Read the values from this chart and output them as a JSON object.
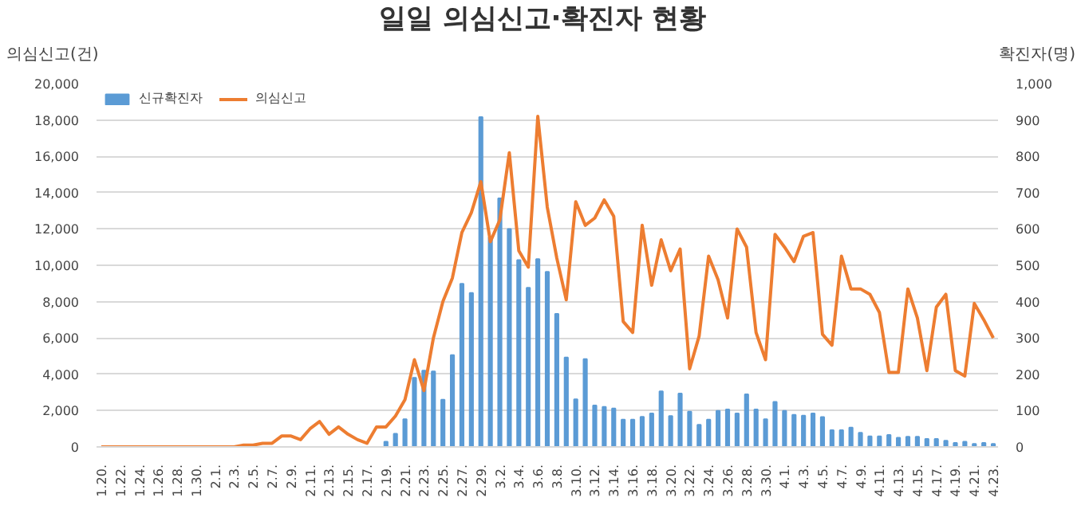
{
  "chart_data": {
    "type": "bar",
    "title": "일일 의심신고·확진자 현황",
    "ylabel": "의심신고(건)",
    "y2label": "확진자(명)",
    "categories": [
      "1.20.",
      null,
      "1.22.",
      null,
      "1.24.",
      null,
      "1.26.",
      null,
      "1.28.",
      null,
      "1.30.",
      null,
      "2.1.",
      null,
      "2.3.",
      null,
      "2.5.",
      null,
      "2.7.",
      null,
      "2.9.",
      null,
      "2.11.",
      null,
      "2.13.",
      null,
      "2.15.",
      null,
      "2.17.",
      null,
      "2.19.",
      null,
      "2.21.",
      null,
      "2.23.",
      null,
      "2.25.",
      null,
      "2.27.",
      null,
      "2.29.",
      null,
      "3.2.",
      null,
      "3.4.",
      null,
      "3.6.",
      null,
      "3.8.",
      null,
      "3.10.",
      null,
      "3.12.",
      null,
      "3.14.",
      null,
      "3.16.",
      null,
      "3.18.",
      null,
      "3.20.",
      null,
      "3.22.",
      null,
      "3.24.",
      null,
      "3.26.",
      null,
      "3.28.",
      null,
      "3.30.",
      null,
      "4.1.",
      null,
      "4.3.",
      null,
      "4.5.",
      null,
      "4.7.",
      null,
      "4.9.",
      null,
      "4.11.",
      null,
      "4.13.",
      null,
      "4.15.",
      null,
      "4.17.",
      null,
      "4.19.",
      null,
      "4.21.",
      null,
      "4.23."
    ],
    "series": [
      {
        "name": "신규확진자",
        "axis": "y2",
        "color": "#5b9bd5",
        "values": [
          0,
          0,
          0,
          0,
          0,
          0,
          0,
          0,
          0,
          0,
          0,
          0,
          0,
          0,
          0,
          0,
          0,
          0,
          0,
          0,
          0,
          0,
          0,
          0,
          0,
          0,
          0,
          0,
          0,
          0,
          14,
          36,
          76,
          190,
          210,
          208,
          130,
          253,
          449,
          424,
          908,
          577,
          684,
          600,
          514,
          438,
          517,
          482,
          366,
          246,
          131,
          242,
          114,
          110,
          106,
          75,
          75,
          83,
          92,
          153,
          85,
          147,
          97,
          61,
          75,
          99,
          103,
          92,
          145,
          103,
          76,
          124,
          99,
          88,
          86,
          92,
          82,
          46,
          46,
          53,
          39,
          29,
          29,
          33,
          25,
          28,
          28,
          22,
          22,
          17,
          11,
          14,
          8,
          11,
          8
        ]
      },
      {
        "name": "의심신고",
        "type": "line",
        "color": "#ed7d31",
        "values": [
          0,
          0,
          0,
          0,
          0,
          0,
          0,
          0,
          0,
          0,
          0,
          0,
          0,
          0,
          0,
          100,
          100,
          200,
          200,
          600,
          600,
          400,
          1000,
          1400,
          700,
          1100,
          700,
          400,
          200,
          1100,
          1100,
          1700,
          2600,
          4800,
          3100,
          6000,
          8000,
          9300,
          11800,
          12900,
          14600,
          11300,
          12500,
          16200,
          10800,
          9900,
          18200,
          13200,
          10400,
          8100,
          13500,
          12200,
          12600,
          13600,
          12700,
          6900,
          6300,
          12200,
          8900,
          11400,
          9700,
          10900,
          4300,
          6100,
          10500,
          9200,
          7100,
          12000,
          11000,
          6300,
          4800,
          11700,
          11000,
          10200,
          11600,
          11800,
          6200,
          5600,
          10500,
          8700,
          8700,
          8400,
          7400,
          4100,
          4100,
          8700,
          7100,
          4200,
          7700,
          8400,
          4200,
          3900,
          7900,
          7000,
          6000
        ]
      }
    ],
    "ylim": [
      0,
      20000
    ],
    "yticks": [
      0,
      {
        "value": 2000,
        "label": "2,000"
      },
      {
        "value": 4000,
        "label": "4,000"
      },
      {
        "value": 6000,
        "label": "6,000"
      },
      {
        "value": 8000,
        "label": "8,000"
      },
      {
        "value": 10000,
        "label": "10,000"
      },
      {
        "value": 12000,
        "label": "12,000"
      },
      {
        "value": 14000,
        "label": "14,000"
      },
      {
        "value": 16000,
        "label": "16,000"
      },
      {
        "value": 18000,
        "label": "18,000"
      },
      {
        "value": 20000,
        "label": "20,000"
      }
    ],
    "y2lim": [
      0,
      1000
    ],
    "y2ticks": [
      0,
      100,
      200,
      300,
      400,
      500,
      600,
      700,
      800,
      900,
      {
        "value": 1000,
        "label": "1,000"
      }
    ],
    "grid": "y",
    "legend": "top left"
  }
}
